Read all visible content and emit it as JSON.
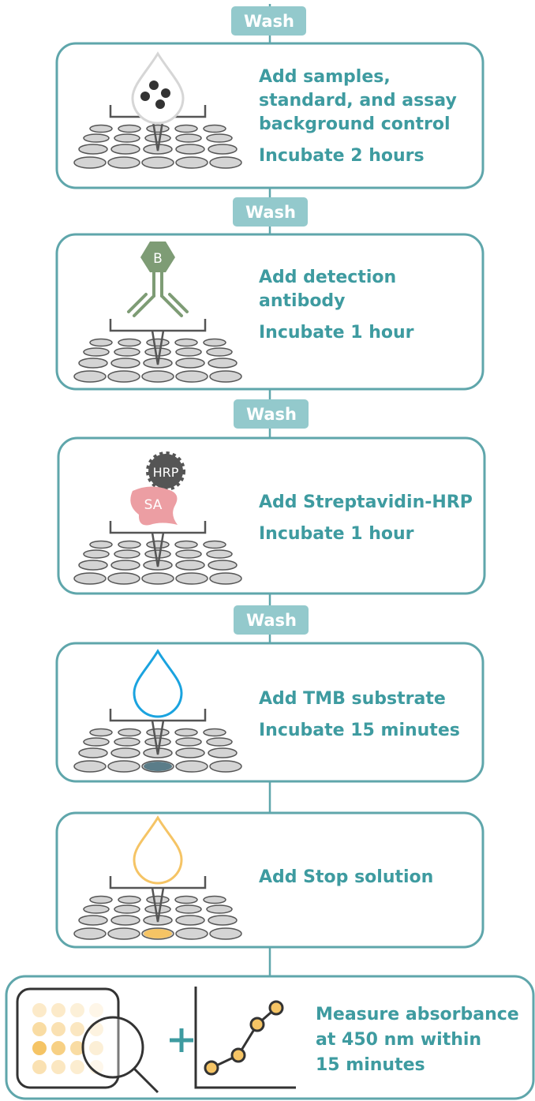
{
  "washes": [
    "Wash",
    "Wash",
    "Wash",
    "Wash"
  ],
  "steps": [
    {
      "lines": [
        "Add samples,",
        "standard, and assay",
        "background control",
        "Incubate 2 hours"
      ]
    },
    {
      "lines": [
        "Add detection",
        "antibody",
        "Incubate 1 hour"
      ]
    },
    {
      "lines": [
        "Add Streptavidin-HRP",
        "Incubate 1 hour"
      ],
      "labels": [
        "HRP",
        "SA"
      ]
    },
    {
      "lines": [
        "Add TMB substrate",
        "Incubate 15 minutes"
      ]
    },
    {
      "lines": [
        "Add Stop solution"
      ]
    },
    {
      "lines": [
        "Measure absorbance",
        "at 450 nm within",
        "15 minutes"
      ]
    }
  ],
  "antibody_label": "B"
}
